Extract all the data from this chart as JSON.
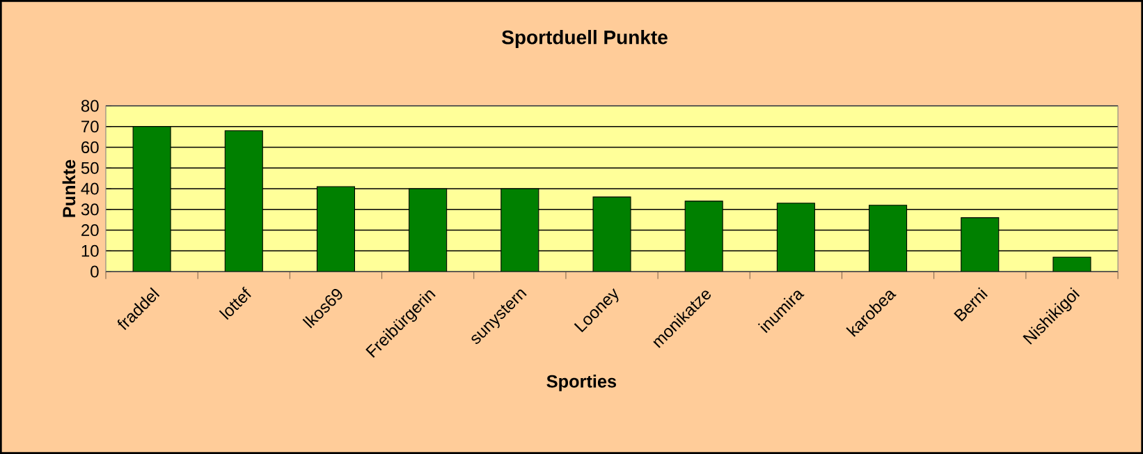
{
  "chart_data": {
    "type": "bar",
    "title": "Sportduell Punkte",
    "xlabel": "Sporties",
    "ylabel": "Punkte",
    "categories": [
      "fraddel",
      "lottef",
      "lkos69",
      "Freibürgerin",
      "sunystern",
      "Looney",
      "monikatze",
      "inumira",
      "karobea",
      "Berni",
      "Nishikigoi"
    ],
    "values": [
      70,
      68,
      41,
      40,
      40,
      36,
      34,
      33,
      32,
      26,
      7
    ],
    "color": "#008000",
    "ylim": [
      0,
      80
    ],
    "yticks": [
      0,
      10,
      20,
      30,
      40,
      50,
      60,
      70,
      80
    ],
    "grid": "y"
  }
}
